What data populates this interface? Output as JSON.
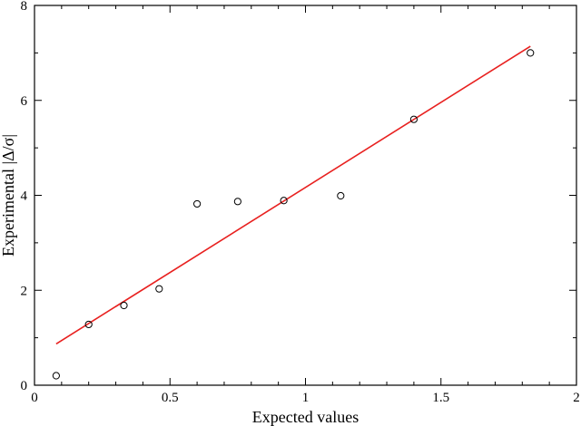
{
  "chart_data": {
    "type": "scatter",
    "title": "",
    "xlabel": "Expected values",
    "ylabel": "Experimental |Δ/σ|",
    "xlim": [
      0,
      2
    ],
    "ylim": [
      0,
      8
    ],
    "x_ticks": [
      0,
      0.5,
      1,
      1.5,
      2
    ],
    "x_tick_labels": [
      "0",
      "0.5",
      "1",
      "1.5",
      "2"
    ],
    "x_minor_step": 0.1,
    "y_ticks": [
      0,
      2,
      4,
      6,
      8
    ],
    "y_tick_labels": [
      "0",
      "2",
      "4",
      "6",
      "8"
    ],
    "y_minor_step": 1,
    "grid": false,
    "legend": "none",
    "series": [
      {
        "type": "scatter",
        "marker": "open-circle",
        "color": "#000000",
        "x": [
          0.08,
          0.2,
          0.33,
          0.46,
          0.6,
          0.75,
          0.92,
          1.13,
          1.4,
          1.83
        ],
        "y": [
          0.2,
          1.28,
          1.68,
          2.03,
          3.82,
          3.87,
          3.89,
          3.99,
          5.6,
          7.0
        ]
      },
      {
        "type": "line",
        "color": "#e8201f",
        "x": [
          0.08,
          1.83
        ],
        "y": [
          0.87,
          7.14
        ]
      }
    ]
  }
}
